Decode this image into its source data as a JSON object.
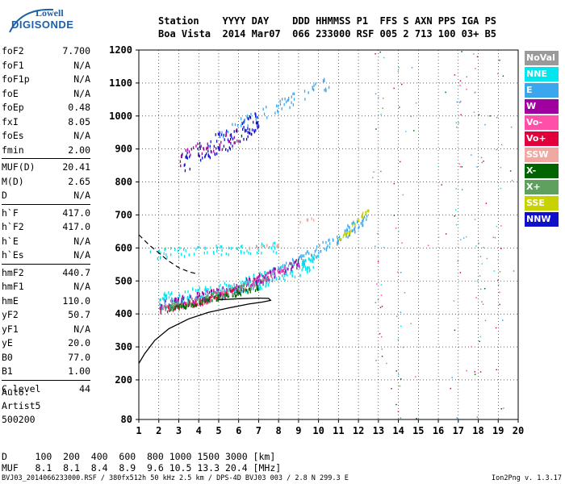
{
  "logo": {
    "line1": "Lowell",
    "line2": "DIGISONDE"
  },
  "header": {
    "row1": "Station    YYYY DAY    DDD HHMMSS P1  FFS S AXN PPS IGA PS",
    "row2": "Boa Vista  2014 Mar07  066 233000 RSF 005 2 713 100 03+ B5"
  },
  "params": [
    {
      "label": "foF2",
      "value": "7.700"
    },
    {
      "label": "foF1",
      "value": "N/A"
    },
    {
      "label": "foF1p",
      "value": "N/A"
    },
    {
      "label": "foE",
      "value": "N/A"
    },
    {
      "label": "foEp",
      "value": "0.48"
    },
    {
      "label": "fxI",
      "value": "8.05"
    },
    {
      "label": "foEs",
      "value": "N/A"
    },
    {
      "label": "fmin",
      "value": "2.00"
    },
    {
      "label": "MUF(D)",
      "value": "20.41"
    },
    {
      "label": "M(D)",
      "value": "2.65"
    },
    {
      "label": "D",
      "value": "N/A"
    },
    {
      "label": "h`F",
      "value": "417.0"
    },
    {
      "label": "h`F2",
      "value": "417.0"
    },
    {
      "label": "h`E",
      "value": "N/A"
    },
    {
      "label": "h`Es",
      "value": "N/A"
    },
    {
      "label": "hmF2",
      "value": "440.7"
    },
    {
      "label": "hmF1",
      "value": "N/A"
    },
    {
      "label": "hmE",
      "value": "110.0"
    },
    {
      "label": "yF2",
      "value": "50.7"
    },
    {
      "label": "yF1",
      "value": "N/A"
    },
    {
      "label": "yE",
      "value": "20.0"
    },
    {
      "label": "B0",
      "value": "77.0"
    },
    {
      "label": "B1",
      "value": "1.00"
    },
    {
      "label": "C-level",
      "value": "44"
    }
  ],
  "auto": {
    "line1": "Auto:",
    "line2": "Artist5",
    "line3": "500200"
  },
  "legend": [
    {
      "label": "NoVal",
      "color": "#9a9a9a"
    },
    {
      "label": "NNE",
      "color": "#00e5ee"
    },
    {
      "label": "E",
      "color": "#3aa6ee"
    },
    {
      "label": "W",
      "color": "#a000a0"
    },
    {
      "label": "Vo-",
      "color": "#ff4fa8"
    },
    {
      "label": "Vo+",
      "color": "#e0003c"
    },
    {
      "label": "SSW",
      "color": "#f0a8a0"
    },
    {
      "label": "X-",
      "color": "#006400"
    },
    {
      "label": "X+",
      "color": "#5fa05f"
    },
    {
      "label": "SSE",
      "color": "#c8d200"
    },
    {
      "label": "NNW",
      "color": "#1010c8"
    }
  ],
  "muf_table": {
    "row1": "D     100  200  400  600  800 1000 1500 3000 [km]",
    "row2": "MUF   8.1  8.1  8.4  8.9  9.6 10.5 13.3 20.4 [MHz]"
  },
  "footer": "BVJ03_2014066233000.RSF / 380fx512h 50 kHz 2.5 km / DPS-4D BVJ03 003 / 2.8 N 299.3 E",
  "version": "Ion2Png v. 1.3.17",
  "chart_data": {
    "type": "scatter",
    "xlim": [
      1,
      20
    ],
    "ylim": [
      80,
      1200
    ],
    "xticks": [
      "1",
      "2",
      "3",
      "4",
      "5",
      "6",
      "7",
      "8",
      "9",
      "10",
      "11",
      "12",
      "13",
      "14",
      "15",
      "16",
      "17",
      "18",
      "19",
      "20"
    ],
    "yticks": [
      "80",
      "200",
      "300",
      "400",
      "500",
      "600",
      "700",
      "800",
      "900",
      "1000",
      "1100",
      "1200"
    ],
    "profile_solid": [
      [
        1.0,
        250
      ],
      [
        1.3,
        280
      ],
      [
        1.8,
        320
      ],
      [
        2.5,
        355
      ],
      [
        3.5,
        385
      ],
      [
        4.5,
        405
      ],
      [
        5.5,
        418
      ],
      [
        6.5,
        430
      ],
      [
        7.2,
        436
      ],
      [
        7.6,
        441
      ],
      [
        7.5,
        447
      ],
      [
        7.0,
        448
      ],
      [
        6.0,
        446
      ],
      [
        5.0,
        443
      ]
    ],
    "profile_dashed": [
      [
        1.0,
        640
      ],
      [
        1.5,
        610
      ],
      [
        2.0,
        585
      ],
      [
        2.5,
        560
      ],
      [
        3.0,
        540
      ],
      [
        3.5,
        528
      ],
      [
        4.0,
        520
      ]
    ],
    "traces": [
      {
        "color": "#3aa6ee",
        "x0": 2.0,
        "x1": 12.6,
        "ylo": 430,
        "yhi": 700,
        "curve": 1.8,
        "spread": 18,
        "count": 260
      },
      {
        "color": "#00e5ee",
        "x0": 2.0,
        "x1": 10.0,
        "ylo": 440,
        "yhi": 560,
        "curve": 1.5,
        "spread": 25,
        "count": 220
      },
      {
        "color": "#a000a0",
        "x0": 2.0,
        "x1": 9.0,
        "ylo": 430,
        "yhi": 555,
        "curve": 1.5,
        "spread": 14,
        "count": 150
      },
      {
        "color": "#ff4fa8",
        "x0": 2.0,
        "x1": 8.5,
        "ylo": 415,
        "yhi": 540,
        "curve": 1.5,
        "spread": 10,
        "count": 90
      },
      {
        "color": "#e0003c",
        "x0": 2.0,
        "x1": 6.0,
        "ylo": 410,
        "yhi": 470,
        "curve": 1.3,
        "spread": 10,
        "count": 60
      },
      {
        "color": "#006400",
        "x0": 2.5,
        "x1": 7.0,
        "ylo": 415,
        "yhi": 480,
        "curve": 1.2,
        "spread": 8,
        "count": 90
      },
      {
        "color": "#5fa05f",
        "x0": 2.3,
        "x1": 7.5,
        "ylo": 420,
        "yhi": 500,
        "curve": 1.2,
        "spread": 10,
        "count": 60
      },
      {
        "color": "#c8d200",
        "x0": 11.0,
        "x1": 12.5,
        "ylo": 620,
        "yhi": 720,
        "curve": 1.1,
        "spread": 8,
        "count": 30
      },
      {
        "color": "#00e5ee",
        "x0": 1.5,
        "x1": 8.0,
        "ylo": 580,
        "yhi": 600,
        "curve": 1.0,
        "spread": 15,
        "count": 70
      },
      {
        "color": "#1010c8",
        "x0": 3.0,
        "x1": 7.0,
        "ylo": 850,
        "yhi": 980,
        "curve": 1.0,
        "spread": 35,
        "count": 110
      },
      {
        "color": "#a000a0",
        "x0": 3.0,
        "x1": 6.0,
        "ylo": 860,
        "yhi": 950,
        "curve": 1.0,
        "spread": 30,
        "count": 40
      },
      {
        "color": "#3aa6ee",
        "x0": 5.0,
        "x1": 10.5,
        "ylo": 940,
        "yhi": 1100,
        "curve": 1.0,
        "spread": 20,
        "count": 60
      },
      {
        "color": "#f0a8a0",
        "x0": 6.5,
        "x1": 8.0,
        "ylo": 600,
        "yhi": 610,
        "curve": 1.0,
        "spread": 5,
        "count": 12
      },
      {
        "color": "#f0a8a0",
        "x0": 9.0,
        "x1": 10.0,
        "ylo": 680,
        "yhi": 690,
        "curve": 1.0,
        "spread": 4,
        "count": 6
      }
    ],
    "noise_columns": [
      13.0,
      14.0,
      17.0,
      18.0,
      19.0
    ],
    "noise_colors": [
      "#e0003c",
      "#006400",
      "#5fa05f",
      "#3aa6ee",
      "#00e5ee",
      "#ff4fa8",
      "#9a9a9a"
    ]
  }
}
